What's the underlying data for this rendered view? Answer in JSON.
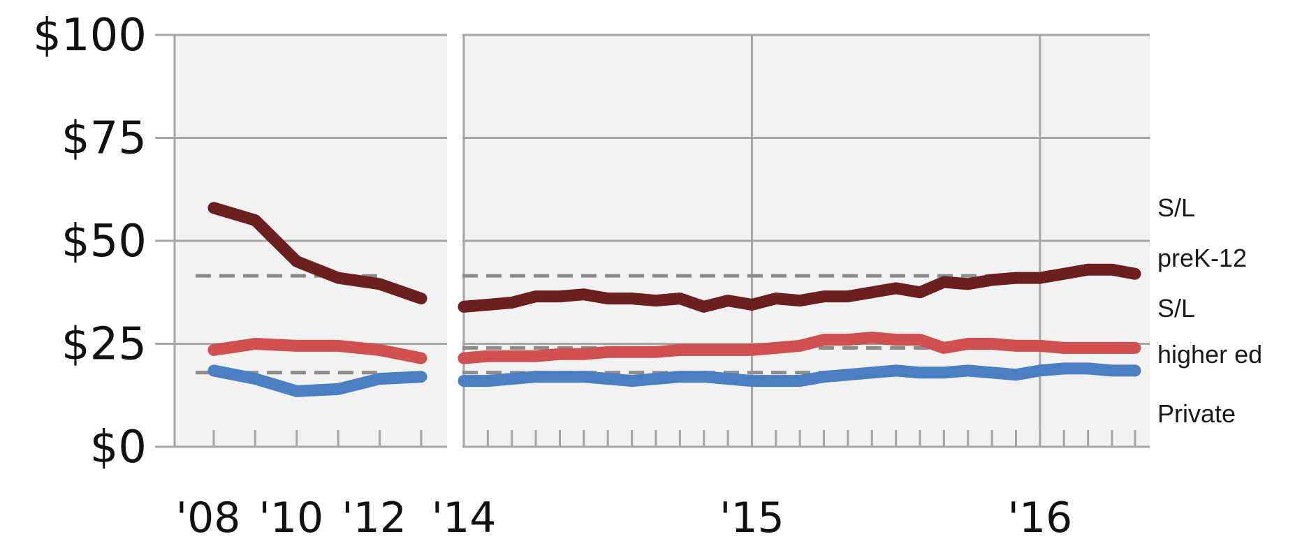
{
  "chart_data": {
    "type": "line",
    "y_axis": {
      "ticks": [
        0,
        25,
        50,
        75,
        100
      ],
      "tick_labels": [
        "$0",
        "$25",
        "$50",
        "$75",
        "$100"
      ],
      "ylim": [
        0,
        100
      ]
    },
    "x_axis": {
      "tick_labels": [
        "'08",
        "'10",
        "'12",
        "'14",
        "'15",
        "'16"
      ]
    },
    "grid": true,
    "panels": [
      {
        "name": "annual",
        "x_range": [
          2007.5,
          2013.5
        ],
        "x_minor_ticks": [
          2008,
          2009,
          2010,
          2011,
          2012,
          2013
        ],
        "x_tick_labels": [
          {
            "x": 2008,
            "label": "'08"
          },
          {
            "x": 2010,
            "label": "'10"
          },
          {
            "x": 2012,
            "label": "'12"
          }
        ],
        "series": [
          {
            "key": "sl_prek12",
            "x": [
              2008,
              2009,
              2010,
              2011,
              2012,
              2013
            ],
            "y": [
              58,
              55,
              45,
              41,
              39.5,
              36
            ]
          },
          {
            "key": "sl_higher_ed",
            "x": [
              2008,
              2009,
              2010,
              2011,
              2012,
              2013
            ],
            "y": [
              23.5,
              25,
              24.5,
              24.5,
              23.5,
              21.5
            ]
          },
          {
            "key": "private",
            "x": [
              2008,
              2009,
              2010,
              2011,
              2012,
              2013
            ],
            "y": [
              18.5,
              16.5,
              13.5,
              14,
              16.5,
              17
            ]
          }
        ],
        "reference_lines": [
          {
            "key": "sl_prek12",
            "y": 41.5
          },
          {
            "key": "private",
            "y": 18
          }
        ]
      },
      {
        "name": "monthly",
        "x_range": [
          2014.0,
          2016.33
        ],
        "x_minor_ticks": [
          2014.0,
          2014.0833,
          2014.1667,
          2014.25,
          2014.3333,
          2014.4167,
          2014.5,
          2014.5833,
          2014.6667,
          2014.75,
          2014.8333,
          2014.9167,
          2015.0,
          2015.0833,
          2015.1667,
          2015.25,
          2015.3333,
          2015.4167,
          2015.5,
          2015.5833,
          2015.6667,
          2015.75,
          2015.8333,
          2015.9167,
          2016.0,
          2016.0833,
          2016.1667,
          2016.25,
          2016.33
        ],
        "x_tick_labels": [
          {
            "x": 2014,
            "label": "'14"
          },
          {
            "x": 2015,
            "label": "'15"
          },
          {
            "x": 2016,
            "label": "'16"
          }
        ],
        "series": [
          {
            "key": "sl_prek12",
            "x": [
              2014.0,
              2014.0833,
              2014.1667,
              2014.25,
              2014.3333,
              2014.4167,
              2014.5,
              2014.5833,
              2014.6667,
              2014.75,
              2014.8333,
              2014.9167,
              2015.0,
              2015.0833,
              2015.1667,
              2015.25,
              2015.3333,
              2015.4167,
              2015.5,
              2015.5833,
              2015.6667,
              2015.75,
              2015.8333,
              2015.9167,
              2016.0,
              2016.0833,
              2016.1667,
              2016.25,
              2016.33
            ],
            "y": [
              34,
              34.5,
              35,
              36.5,
              36.5,
              37,
              36,
              36,
              35.5,
              36,
              34,
              35.5,
              34.5,
              36,
              35.5,
              36.5,
              36.5,
              37.5,
              38.5,
              37.5,
              40,
              39.5,
              40.5,
              41,
              41,
              42,
              43,
              43,
              42
            ]
          },
          {
            "key": "sl_higher_ed",
            "x": [
              2014.0,
              2014.0833,
              2014.1667,
              2014.25,
              2014.3333,
              2014.4167,
              2014.5,
              2014.5833,
              2014.6667,
              2014.75,
              2014.8333,
              2014.9167,
              2015.0,
              2015.0833,
              2015.1667,
              2015.25,
              2015.3333,
              2015.4167,
              2015.5,
              2015.5833,
              2015.6667,
              2015.75,
              2015.8333,
              2015.9167,
              2016.0,
              2016.0833,
              2016.1667,
              2016.25,
              2016.33
            ],
            "y": [
              21.5,
              22,
              22,
              22,
              22.5,
              22.5,
              23,
              23,
              23,
              23.5,
              23.5,
              23.5,
              23.5,
              24,
              24.5,
              26,
              26,
              26.5,
              26,
              26,
              24,
              25,
              25,
              24.5,
              24.5,
              24,
              24,
              24,
              24
            ]
          },
          {
            "key": "private",
            "x": [
              2014.0,
              2014.0833,
              2014.1667,
              2014.25,
              2014.3333,
              2014.4167,
              2014.5,
              2014.5833,
              2014.6667,
              2014.75,
              2014.8333,
              2014.9167,
              2015.0,
              2015.0833,
              2015.1667,
              2015.25,
              2015.3333,
              2015.4167,
              2015.5,
              2015.5833,
              2015.6667,
              2015.75,
              2015.8333,
              2015.9167,
              2016.0,
              2016.0833,
              2016.1667,
              2016.25,
              2016.33
            ],
            "y": [
              16,
              16,
              16.5,
              17,
              17,
              17,
              16.5,
              16,
              16.5,
              17,
              17,
              16.5,
              16,
              16,
              16,
              17,
              17.5,
              18,
              18.5,
              18,
              18,
              18.5,
              18,
              17.5,
              18.5,
              19,
              19,
              18.5,
              18.5
            ]
          }
        ],
        "reference_lines": [
          {
            "key": "sl_prek12",
            "y": 41.5
          },
          {
            "key": "sl_higher_ed",
            "y": 24
          },
          {
            "key": "private",
            "y": 18
          }
        ]
      }
    ],
    "series_info": [
      {
        "key": "sl_prek12",
        "color": "#6b1f1f",
        "label_lines": [
          "S/L",
          "preK-12"
        ]
      },
      {
        "key": "sl_higher_ed",
        "color": "#d0504f",
        "label_lines": [
          "S/L",
          "higher ed"
        ]
      },
      {
        "key": "private",
        "color": "#4a7fc1",
        "label_lines": [
          "Private"
        ]
      }
    ],
    "colors": {
      "plot_background": "#f2f2f2",
      "gridline": "#a6a6a6",
      "reference_line": "#8c8c8c"
    }
  }
}
